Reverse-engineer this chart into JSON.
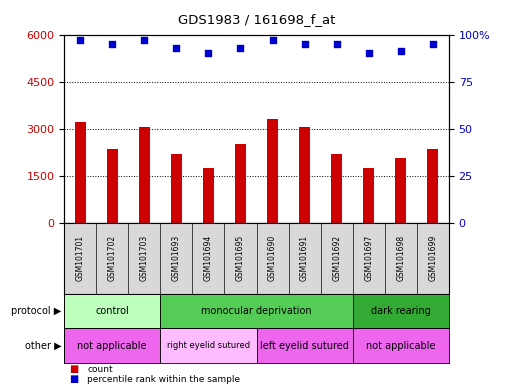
{
  "title": "GDS1983 / 161698_f_at",
  "samples": [
    "GSM101701",
    "GSM101702",
    "GSM101703",
    "GSM101693",
    "GSM101694",
    "GSM101695",
    "GSM101690",
    "GSM101691",
    "GSM101692",
    "GSM101697",
    "GSM101698",
    "GSM101699"
  ],
  "counts": [
    3200,
    2350,
    3050,
    2200,
    1750,
    2500,
    3300,
    3050,
    2200,
    1750,
    2050,
    2350
  ],
  "percentile_ranks": [
    97,
    95,
    97,
    93,
    90,
    93,
    97,
    95,
    95,
    90,
    91,
    95
  ],
  "ylim_left": [
    0,
    6000
  ],
  "ylim_right": [
    0,
    100
  ],
  "yticks_left": [
    0,
    1500,
    3000,
    4500,
    6000
  ],
  "yticks_right": [
    0,
    25,
    50,
    75,
    100
  ],
  "bar_color": "#cc0000",
  "dot_color": "#0000cc",
  "protocol_groups": [
    {
      "label": "control",
      "start": 0,
      "end": 3,
      "color": "#bbffbb"
    },
    {
      "label": "monocular deprivation",
      "start": 3,
      "end": 9,
      "color": "#55cc55"
    },
    {
      "label": "dark rearing",
      "start": 9,
      "end": 12,
      "color": "#33aa33"
    }
  ],
  "other_groups": [
    {
      "label": "not applicable",
      "start": 0,
      "end": 3,
      "color": "#ee66ee"
    },
    {
      "label": "right eyelid sutured",
      "start": 3,
      "end": 6,
      "color": "#ffbbff"
    },
    {
      "label": "left eyelid sutured",
      "start": 6,
      "end": 9,
      "color": "#ee66ee"
    },
    {
      "label": "not applicable",
      "start": 9,
      "end": 12,
      "color": "#ee66ee"
    }
  ],
  "legend_count_label": "count",
  "legend_pct_label": "percentile rank within the sample",
  "protocol_label": "protocol",
  "other_label": "other",
  "background_color": "#ffffff",
  "tick_label_color_left": "#cc0000",
  "tick_label_color_right": "#0000cc",
  "sample_box_color": "#d8d8d8",
  "bar_width": 0.35
}
